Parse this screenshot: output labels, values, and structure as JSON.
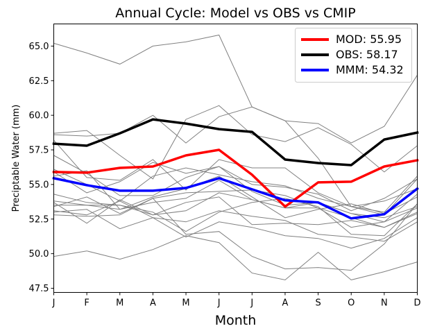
{
  "chart_data": {
    "type": "line",
    "title": "Annual Cycle: Model vs OBS vs CMIP",
    "xlabel": "Month",
    "ylabel": "Preciptable Water (mm)",
    "categories": [
      "J",
      "F",
      "M",
      "A",
      "M",
      "J",
      "J",
      "A",
      "S",
      "O",
      "N",
      "D"
    ],
    "ylim": [
      47.2,
      66.6
    ],
    "yticks": [
      47.5,
      50.0,
      52.5,
      55.0,
      57.5,
      60.0,
      62.5,
      65.0
    ],
    "ytick_labels": [
      "47.5",
      "50.0",
      "52.5",
      "55.0",
      "57.5",
      "60.0",
      "62.5",
      "65.0"
    ],
    "legend_position": "top-right",
    "background_series": {
      "color": "#808080",
      "values": [
        [
          65.2,
          64.5,
          63.7,
          65.0,
          65.3,
          65.8,
          60.6,
          59.6,
          59.4,
          58.0,
          59.2,
          62.9
        ],
        [
          58.7,
          58.9,
          57.1,
          55.4,
          59.7,
          60.7,
          58.6,
          58.1,
          59.1,
          57.9,
          55.9,
          57.8
        ],
        [
          58.6,
          58.5,
          58.7,
          60.0,
          58.0,
          59.9,
          60.6,
          59.6,
          56.9,
          53.4,
          52.8,
          55.4
        ],
        [
          58.2,
          55.5,
          55.3,
          56.8,
          54.6,
          56.8,
          56.2,
          56.2,
          54.4,
          53.4,
          53.0,
          55.6
        ],
        [
          57.1,
          55.8,
          54.2,
          54.2,
          55.5,
          56.3,
          54.5,
          53.5,
          53.7,
          52.9,
          52.3,
          53.3
        ],
        [
          56.1,
          55.0,
          53.8,
          55.6,
          56.2,
          55.7,
          55.2,
          54.9,
          54.0,
          53.4,
          53.8,
          54.7
        ],
        [
          55.9,
          54.4,
          55.2,
          56.6,
          55.8,
          56.3,
          55.0,
          54.8,
          54.3,
          53.1,
          54.0,
          55.4
        ],
        [
          55.6,
          56.0,
          53.2,
          54.1,
          54.7,
          55.6,
          54.1,
          52.6,
          53.2,
          53.6,
          52.9,
          54.1
        ],
        [
          54.3,
          53.7,
          53.5,
          52.8,
          53.1,
          54.4,
          53.9,
          53.3,
          53.7,
          52.9,
          52.6,
          53.4
        ],
        [
          53.8,
          53.5,
          53.2,
          53.7,
          54.0,
          55.3,
          53.9,
          53.3,
          53.3,
          51.9,
          52.3,
          54.3
        ],
        [
          53.7,
          52.2,
          53.9,
          52.8,
          53.7,
          54.1,
          52.1,
          52.2,
          52.1,
          52.4,
          51.9,
          52.9
        ],
        [
          53.5,
          53.5,
          53.5,
          53.0,
          51.6,
          53.0,
          53.7,
          54.0,
          53.4,
          51.4,
          51.3,
          53.6
        ],
        [
          53.4,
          54.1,
          52.9,
          54.0,
          54.4,
          54.5,
          54.6,
          54.2,
          53.3,
          52.6,
          51.9,
          53.0
        ],
        [
          53.1,
          52.8,
          53.8,
          52.6,
          52.3,
          53.1,
          52.7,
          52.4,
          51.4,
          51.2,
          50.9,
          52.3
        ],
        [
          53.0,
          53.2,
          51.8,
          52.6,
          51.2,
          52.3,
          51.9,
          51.3,
          51.1,
          50.4,
          51.1,
          52.6
        ],
        [
          52.8,
          52.7,
          52.8,
          54.0,
          51.4,
          51.6,
          49.8,
          48.9,
          49.0,
          48.8,
          50.7,
          53.6
        ],
        [
          49.8,
          50.2,
          49.6,
          50.3,
          51.3,
          50.8,
          48.6,
          48.1,
          50.1,
          48.1,
          48.7,
          49.4
        ]
      ]
    },
    "series": [
      {
        "name": "MOD",
        "label": "MOD: 55.95",
        "color": "#ff0000",
        "values": [
          55.9,
          55.85,
          56.2,
          56.3,
          57.1,
          57.5,
          55.7,
          53.4,
          55.15,
          55.2,
          56.3,
          56.75
        ]
      },
      {
        "name": "OBS",
        "label": "OBS: 58.17",
        "color": "#000000",
        "values": [
          57.95,
          57.8,
          58.7,
          59.7,
          59.4,
          59.0,
          58.8,
          56.8,
          56.55,
          56.4,
          58.25,
          58.75
        ]
      },
      {
        "name": "MMM",
        "label": "MMM: 54.32",
        "color": "#0000ff",
        "values": [
          55.45,
          54.95,
          54.55,
          54.55,
          54.75,
          55.45,
          54.65,
          53.85,
          53.7,
          52.55,
          52.85,
          54.7
        ]
      }
    ]
  }
}
